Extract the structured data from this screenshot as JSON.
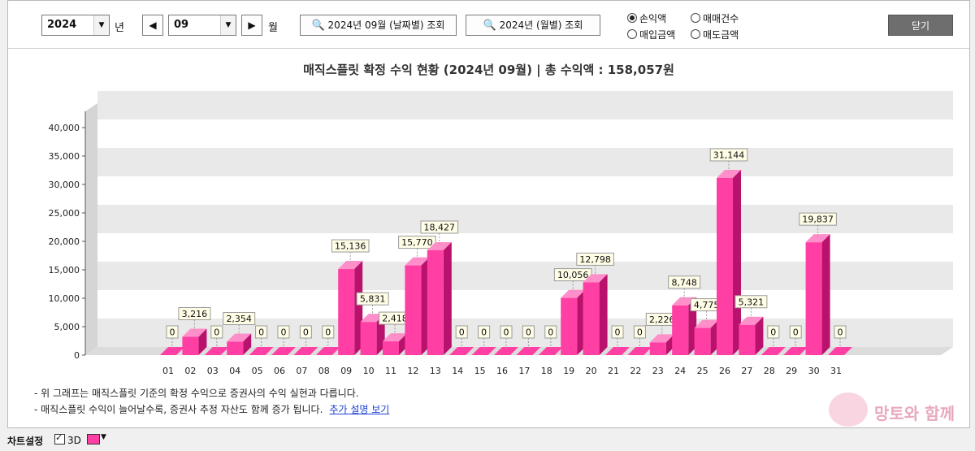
{
  "toolbar": {
    "year_value": "2024",
    "year_unit": "년",
    "month_value": "09",
    "month_unit": "월",
    "prev_label": "◀",
    "next_label": "▶",
    "daily_button": "2024년 09월 (날짜별) 조회",
    "monthly_button": "2024년 (월별) 조회",
    "radio_profit": "손익액",
    "radio_trade_count": "매매건수",
    "radio_buy_amount": "매입금액",
    "radio_sell_amount": "매도금액",
    "selected_radio": "손익액",
    "close_button": "닫기"
  },
  "chart_data": {
    "type": "bar",
    "title": "매직스플릿 확정 수익 현황 (2024년 09월)  |  총 수익액 : 158,057원",
    "categories": [
      "01",
      "02",
      "03",
      "04",
      "05",
      "06",
      "07",
      "08",
      "09",
      "10",
      "11",
      "12",
      "13",
      "14",
      "15",
      "16",
      "17",
      "18",
      "19",
      "20",
      "21",
      "22",
      "23",
      "24",
      "25",
      "26",
      "27",
      "28",
      "29",
      "30",
      "31"
    ],
    "values": [
      0,
      3216,
      0,
      2354,
      0,
      0,
      0,
      0,
      15136,
      5831,
      2418,
      15770,
      18427,
      0,
      0,
      0,
      0,
      0,
      10056,
      12798,
      0,
      0,
      2226,
      8748,
      4775,
      31144,
      5321,
      0,
      0,
      19837,
      0
    ],
    "value_labels": [
      "0",
      "3,216",
      "0",
      "2,354",
      "0",
      "0",
      "0",
      "0",
      "15,136",
      "5,831",
      "2,418",
      "15,770",
      "18,427",
      "0",
      "0",
      "0",
      "0",
      "0",
      "10,056",
      "12,798",
      "0",
      "0",
      "2,226",
      "8,748",
      "4,775",
      "31,144",
      "5,321",
      "0",
      "0",
      "19,837",
      "0"
    ],
    "yticks": [
      0,
      5000,
      10000,
      15000,
      20000,
      25000,
      30000,
      35000,
      40000
    ],
    "ytick_labels": [
      "0",
      "5,000",
      "10,000",
      "15,000",
      "20,000",
      "25,000",
      "30,000",
      "35,000",
      "40,000"
    ],
    "ylim": [
      0,
      40000
    ],
    "three_d": true,
    "bar_color": "#ff3fa4",
    "grid": true
  },
  "notes": {
    "line1": "- 위 그래프는 매직스플릿 기준의 확정 수익으로 증권사의 수익 실현과 다릅니다.",
    "line2": "- 매직스플릿 수익이 늘어날수록, 증권사 추정 자산도 함께 증가 됩니다.",
    "link": "추가 설명 보기"
  },
  "status": {
    "settings_label": "차트설정",
    "threed_label": "3D"
  },
  "watermark": {
    "text": "망토와 함께"
  }
}
